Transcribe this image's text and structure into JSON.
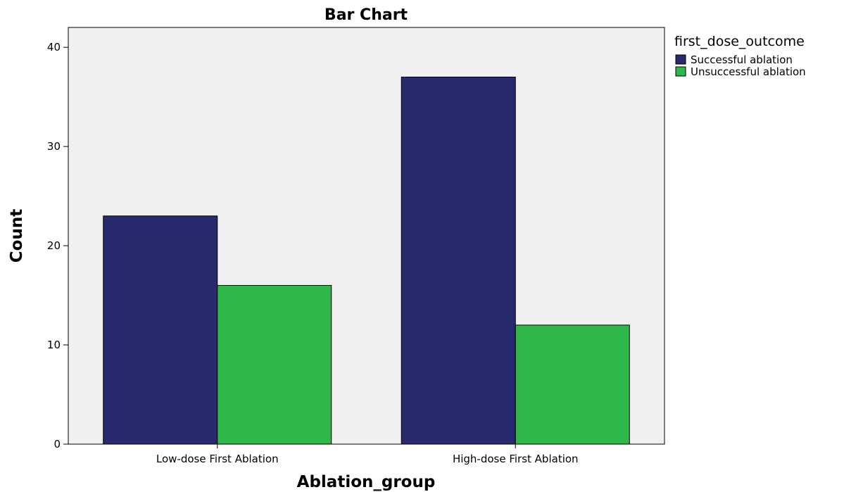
{
  "chart_data": {
    "type": "bar",
    "title": "Bar Chart",
    "xlabel": "Ablation_group",
    "ylabel": "Count",
    "categories": [
      "Low-dose First Ablation",
      "High-dose First Ablation"
    ],
    "series": [
      {
        "name": "Successful ablation",
        "values": [
          23,
          37
        ],
        "color": "#272a6e"
      },
      {
        "name": "Unsuccessful ablation",
        "values": [
          16,
          12
        ],
        "color": "#2fb84a"
      }
    ],
    "ylim": [
      0,
      42
    ],
    "yticks": [
      0,
      10,
      20,
      30,
      40
    ],
    "legend_title": "first_dose_outcome",
    "legend_position": "top-right",
    "plot_background": "#f0f0f0",
    "grid": false
  }
}
